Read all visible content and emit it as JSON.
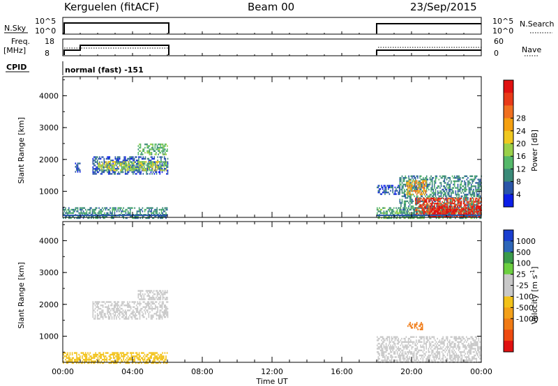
{
  "header": {
    "station": "Kerguelen (fitACF)",
    "beam": "Beam 00",
    "date": "23/Sep/2015"
  },
  "panels": {
    "nsky_label": "N.Sky",
    "nsearch_label": "N.Search",
    "nsky_ticks": [
      "10^5",
      "10^0"
    ],
    "freq_label": "Freq.",
    "freq_unit": "[MHz]",
    "freq_ticks": [
      "18",
      "8"
    ],
    "nave_label": "Nave",
    "nave_ticks": [
      "60",
      "0"
    ],
    "cpid_label": "CPID",
    "cpid_text": "normal (fast) -151"
  },
  "chart_data": [
    {
      "type": "heatmap",
      "name": "power",
      "ylabel": "Slant Range [km]",
      "ylim": [
        180,
        4600
      ],
      "yticks": [
        1000,
        2000,
        3000,
        4000
      ],
      "xlim": [
        0,
        24
      ],
      "colorbar_label": "Power [dB]",
      "colorbar_ticks": [
        "4",
        "8",
        "12",
        "16",
        "20",
        "24",
        "28"
      ],
      "colorbar_colors": [
        "#0c1ee8",
        "#2a55a8",
        "#3a8a78",
        "#55b86a",
        "#9ad04a",
        "#f0c820",
        "#f5a010",
        "#f07020",
        "#e83a18",
        "#e01010"
      ],
      "regions": [
        {
          "t0": 0.0,
          "t1": 6.0,
          "r0": 180,
          "r1": 500,
          "level": 2
        },
        {
          "t0": 0.7,
          "t1": 1.0,
          "r0": 1600,
          "r1": 1900,
          "level": 1
        },
        {
          "t0": 1.7,
          "t1": 6.0,
          "r0": 1550,
          "r1": 2100,
          "level": 1
        },
        {
          "t0": 2.0,
          "t1": 6.0,
          "r0": 1650,
          "r1": 1950,
          "level": 4
        },
        {
          "t0": 4.3,
          "t1": 6.0,
          "r0": 2150,
          "r1": 2500,
          "level": 3
        },
        {
          "t0": 18.0,
          "t1": 24.0,
          "r0": 180,
          "r1": 500,
          "level": 3
        },
        {
          "t0": 18.0,
          "t1": 19.3,
          "r0": 900,
          "r1": 1200,
          "level": 1
        },
        {
          "t0": 19.3,
          "t1": 24.0,
          "r0": 200,
          "r1": 1500,
          "level": 2
        },
        {
          "t0": 19.7,
          "t1": 20.8,
          "r0": 900,
          "r1": 1350,
          "level": 6
        },
        {
          "t0": 20.2,
          "t1": 24.0,
          "r0": 250,
          "r1": 800,
          "level": 8
        },
        {
          "t0": 21.0,
          "t1": 24.0,
          "r0": 200,
          "r1": 550,
          "level": 9
        }
      ]
    },
    {
      "type": "heatmap",
      "name": "velocity",
      "xlabel": "Time UT",
      "ylabel": "Slant Range [km]",
      "ylim": [
        180,
        4600
      ],
      "yticks": [
        1000,
        2000,
        3000,
        4000
      ],
      "xlim": [
        0,
        24
      ],
      "xticks": [
        "00:00",
        "04:00",
        "08:00",
        "12:00",
        "16:00",
        "20:00",
        "00:00"
      ],
      "colorbar_label": "Velocity [m s^-1]",
      "colorbar_ticks": [
        "1000",
        "500",
        "100",
        "25",
        "-25",
        "-100",
        "-500",
        "-1000"
      ],
      "colorbar_colors": [
        "#1a3ed0",
        "#2e66b8",
        "#3a9a4a",
        "#6ccf40",
        "#c8c8c8",
        "#c8c8c8",
        "#f2c21a",
        "#f3a019",
        "#f07a14",
        "#ee4a10",
        "#e01010"
      ],
      "regions": [
        {
          "t0": 0.0,
          "t1": 6.0,
          "r0": 180,
          "r1": 500,
          "color": "#f2c21a"
        },
        {
          "t0": 1.7,
          "t1": 6.0,
          "r0": 1550,
          "r1": 2100,
          "color": "#c8c8c8"
        },
        {
          "t0": 4.3,
          "t1": 6.0,
          "r0": 2150,
          "r1": 2450,
          "color": "#c8c8c8"
        },
        {
          "t0": 18.0,
          "t1": 24.0,
          "r0": 200,
          "r1": 1000,
          "color": "#c8c8c8"
        },
        {
          "t0": 19.7,
          "t1": 20.6,
          "r0": 1200,
          "r1": 1450,
          "color": "#f07a14"
        }
      ]
    }
  ]
}
